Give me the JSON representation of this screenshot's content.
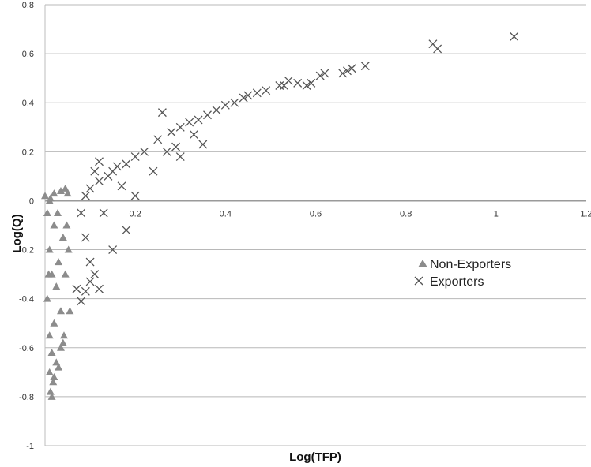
{
  "chart_data": {
    "type": "scatter",
    "title": "",
    "xlabel": "Log(TFP)",
    "ylabel": "Log(Q)",
    "xlim": [
      0,
      1.2
    ],
    "ylim": [
      -1,
      0.8
    ],
    "x_ticks": [
      {
        "value": 0.2,
        "label": "0.2"
      },
      {
        "value": 0.4,
        "label": "0.4"
      },
      {
        "value": 0.6,
        "label": "0.6"
      },
      {
        "value": 0.8,
        "label": "0.8"
      },
      {
        "value": 1.0,
        "label": "1"
      },
      {
        "value": 1.2,
        "label": "1.2"
      }
    ],
    "y_ticks": [
      {
        "value": 0.8,
        "label": "0.8"
      },
      {
        "value": 0.6,
        "label": "0.6"
      },
      {
        "value": 0.4,
        "label": "0.4"
      },
      {
        "value": 0.2,
        "label": "0.2"
      },
      {
        "value": 0,
        "label": "0"
      },
      {
        "value": -0.2,
        "label": "-0.2"
      },
      {
        "value": -0.4,
        "label": "-0.4"
      },
      {
        "value": -0.6,
        "label": "-0.6"
      },
      {
        "value": -0.8,
        "label": "-0.8"
      },
      {
        "value": -1,
        "label": "-1"
      }
    ],
    "grid": "horizontal",
    "legend_position": "right",
    "series": [
      {
        "name": "Non-Exporters",
        "marker": "triangle",
        "color": "#8c8c8c",
        "points": [
          [
            0.0,
            0.02
          ],
          [
            0.02,
            0.03
          ],
          [
            0.045,
            0.05
          ],
          [
            0.035,
            0.04
          ],
          [
            0.012,
            0.01
          ],
          [
            0.005,
            -0.05
          ],
          [
            0.02,
            -0.1
          ],
          [
            0.04,
            -0.15
          ],
          [
            0.01,
            -0.2
          ],
          [
            0.03,
            -0.25
          ],
          [
            0.015,
            -0.3
          ],
          [
            0.025,
            -0.35
          ],
          [
            0.005,
            -0.4
          ],
          [
            0.035,
            -0.45
          ],
          [
            0.02,
            -0.5
          ],
          [
            0.01,
            -0.55
          ],
          [
            0.04,
            -0.58
          ],
          [
            0.015,
            -0.62
          ],
          [
            0.025,
            -0.66
          ],
          [
            0.01,
            -0.7
          ],
          [
            0.018,
            -0.74
          ],
          [
            0.012,
            -0.78
          ],
          [
            0.015,
            -0.8
          ],
          [
            0.02,
            -0.72
          ],
          [
            0.035,
            -0.6
          ],
          [
            0.042,
            -0.55
          ],
          [
            0.045,
            -0.3
          ],
          [
            0.048,
            -0.1
          ],
          [
            0.05,
            0.03
          ],
          [
            0.052,
            -0.2
          ],
          [
            0.055,
            -0.45
          ],
          [
            0.03,
            -0.68
          ],
          [
            0.008,
            -0.3
          ],
          [
            0.028,
            -0.05
          ],
          [
            0.01,
            0.0
          ]
        ]
      },
      {
        "name": "Exporters",
        "marker": "x",
        "color": "#555555",
        "points": [
          [
            0.86,
            0.64
          ],
          [
            0.87,
            0.62
          ],
          [
            1.04,
            0.67
          ],
          [
            0.71,
            0.55
          ],
          [
            0.68,
            0.54
          ],
          [
            0.67,
            0.53
          ],
          [
            0.66,
            0.52
          ],
          [
            0.62,
            0.52
          ],
          [
            0.61,
            0.51
          ],
          [
            0.59,
            0.48
          ],
          [
            0.58,
            0.47
          ],
          [
            0.56,
            0.48
          ],
          [
            0.54,
            0.49
          ],
          [
            0.53,
            0.47
          ],
          [
            0.52,
            0.47
          ],
          [
            0.49,
            0.45
          ],
          [
            0.47,
            0.44
          ],
          [
            0.45,
            0.43
          ],
          [
            0.44,
            0.42
          ],
          [
            0.42,
            0.4
          ],
          [
            0.4,
            0.39
          ],
          [
            0.38,
            0.37
          ],
          [
            0.36,
            0.35
          ],
          [
            0.34,
            0.33
          ],
          [
            0.32,
            0.32
          ],
          [
            0.3,
            0.3
          ],
          [
            0.28,
            0.28
          ],
          [
            0.26,
            0.36
          ],
          [
            0.35,
            0.23
          ],
          [
            0.3,
            0.18
          ],
          [
            0.25,
            0.25
          ],
          [
            0.22,
            0.2
          ],
          [
            0.2,
            0.18
          ],
          [
            0.18,
            0.15
          ],
          [
            0.16,
            0.14
          ],
          [
            0.15,
            0.12
          ],
          [
            0.14,
            0.1
          ],
          [
            0.12,
            0.08
          ],
          [
            0.1,
            0.05
          ],
          [
            0.09,
            0.02
          ],
          [
            0.08,
            -0.05
          ],
          [
            0.09,
            -0.15
          ],
          [
            0.1,
            -0.25
          ],
          [
            0.11,
            -0.3
          ],
          [
            0.1,
            -0.33
          ],
          [
            0.07,
            -0.36
          ],
          [
            0.09,
            -0.37
          ],
          [
            0.08,
            -0.41
          ],
          [
            0.12,
            -0.36
          ],
          [
            0.15,
            -0.2
          ],
          [
            0.18,
            -0.12
          ],
          [
            0.2,
            0.02
          ],
          [
            0.17,
            0.06
          ],
          [
            0.13,
            -0.05
          ],
          [
            0.24,
            0.12
          ],
          [
            0.27,
            0.2
          ],
          [
            0.33,
            0.27
          ],
          [
            0.29,
            0.22
          ],
          [
            0.12,
            0.16
          ],
          [
            0.11,
            0.12
          ]
        ]
      }
    ]
  }
}
